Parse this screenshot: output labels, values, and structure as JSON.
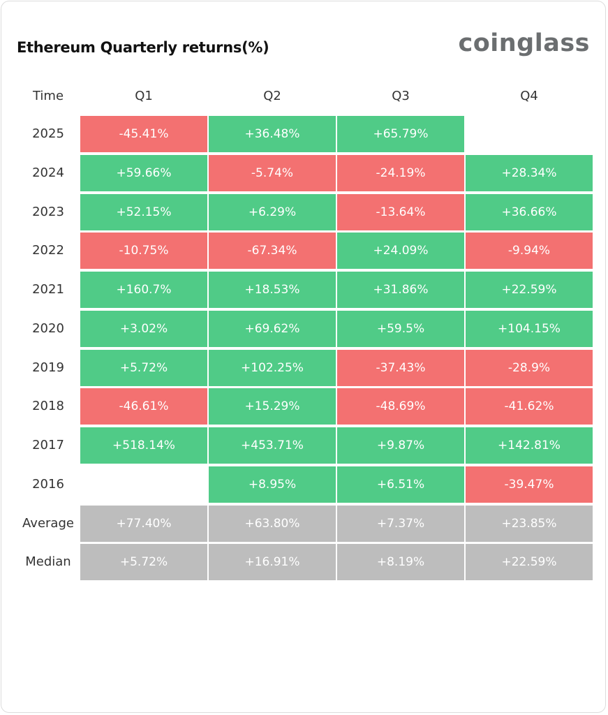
{
  "title": "Ethereum Quarterly returns(%)",
  "brand": "coinglass",
  "table": {
    "columns": [
      "Time",
      "Q1",
      "Q2",
      "Q3",
      "Q4"
    ],
    "palette": {
      "positive": "#50cb87",
      "negative": "#f37171",
      "summary": "#bdbdbd"
    },
    "rows": [
      {
        "label": "2025",
        "cells": [
          "-45.41%",
          "+36.48%",
          "+65.79%",
          null
        ]
      },
      {
        "label": "2024",
        "cells": [
          "+59.66%",
          "-5.74%",
          "-24.19%",
          "+28.34%"
        ]
      },
      {
        "label": "2023",
        "cells": [
          "+52.15%",
          "+6.29%",
          "-13.64%",
          "+36.66%"
        ]
      },
      {
        "label": "2022",
        "cells": [
          "-10.75%",
          "-67.34%",
          "+24.09%",
          "-9.94%"
        ]
      },
      {
        "label": "2021",
        "cells": [
          "+160.7%",
          "+18.53%",
          "+31.86%",
          "+22.59%"
        ]
      },
      {
        "label": "2020",
        "cells": [
          "+3.02%",
          "+69.62%",
          "+59.5%",
          "+104.15%"
        ]
      },
      {
        "label": "2019",
        "cells": [
          "+5.72%",
          "+102.25%",
          "-37.43%",
          "-28.9%"
        ]
      },
      {
        "label": "2018",
        "cells": [
          "-46.61%",
          "+15.29%",
          "-48.69%",
          "-41.62%"
        ]
      },
      {
        "label": "2017",
        "cells": [
          "+518.14%",
          "+453.71%",
          "+9.87%",
          "+142.81%"
        ]
      },
      {
        "label": "2016",
        "cells": [
          null,
          "+8.95%",
          "+6.51%",
          "-39.47%"
        ]
      }
    ],
    "summary": [
      {
        "label": "Average",
        "cells": [
          "+77.40%",
          "+63.80%",
          "+7.37%",
          "+23.85%"
        ]
      },
      {
        "label": "Median",
        "cells": [
          "+5.72%",
          "+16.91%",
          "+8.19%",
          "+22.59%"
        ]
      }
    ]
  }
}
